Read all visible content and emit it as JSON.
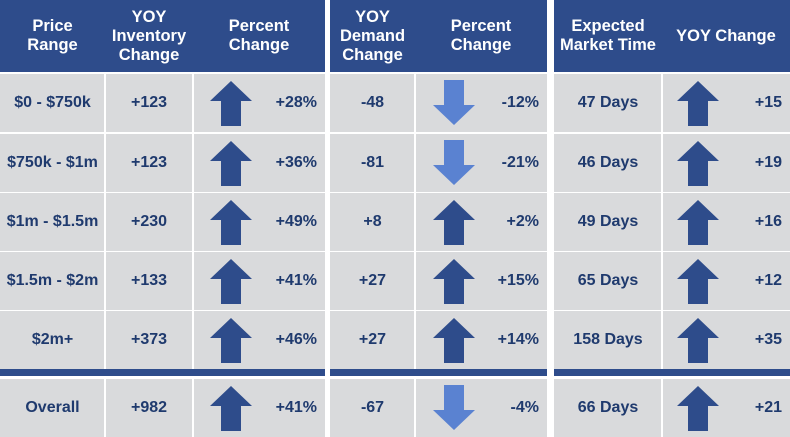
{
  "colors": {
    "header_bg": "#2e4c8b",
    "row_bg": "#d9dadc",
    "text": "#1f3a6e",
    "arrow_up": "#2e4c8b",
    "arrow_down": "#5a82d1"
  },
  "headers": {
    "price_range": "Price\nRange",
    "yoy_inventory": "YOY\nInventory\nChange",
    "inv_percent": "Percent\nChange",
    "yoy_demand": "YOY\nDemand\nChange",
    "dem_percent": "Percent\nChange",
    "market_time": "Expected\nMarket Time",
    "yoy_change": "YOY Change"
  },
  "rows": [
    {
      "range": "$0 - $750k",
      "inv": "+123",
      "inv_dir": "up-icon",
      "inv_pct": "+28%",
      "dem": "-48",
      "dem_dir": "down-icon",
      "dem_pct": "-12%",
      "time": "47 Days",
      "time_dir": "up-icon",
      "time_chg": "+15"
    },
    {
      "range": "$750k - $1m",
      "inv": "+123",
      "inv_dir": "up-icon",
      "inv_pct": "+36%",
      "dem": "-81",
      "dem_dir": "down-icon",
      "dem_pct": "-21%",
      "time": "46 Days",
      "time_dir": "up-icon",
      "time_chg": "+19"
    },
    {
      "range": "$1m - $1.5m",
      "inv": "+230",
      "inv_dir": "up-icon",
      "inv_pct": "+49%",
      "dem": "+8",
      "dem_dir": "up-icon",
      "dem_pct": "+2%",
      "time": "49 Days",
      "time_dir": "up-icon",
      "time_chg": "+16"
    },
    {
      "range": "$1.5m - $2m",
      "inv": "+133",
      "inv_dir": "up-icon",
      "inv_pct": "+41%",
      "dem": "+27",
      "dem_dir": "up-icon",
      "dem_pct": "+15%",
      "time": "65 Days",
      "time_dir": "up-icon",
      "time_chg": "+12"
    },
    {
      "range": "$2m+",
      "inv": "+373",
      "inv_dir": "up-icon",
      "inv_pct": "+46%",
      "dem": "+27",
      "dem_dir": "up-icon",
      "dem_pct": "+14%",
      "time": "158 Days",
      "time_dir": "up-icon",
      "time_chg": "+35"
    }
  ],
  "overall": {
    "range": "Overall",
    "inv": "+982",
    "inv_dir": "up-icon",
    "inv_pct": "+41%",
    "dem": "-67",
    "dem_dir": "down-icon",
    "dem_pct": "-4%",
    "time": "66 Days",
    "time_dir": "up-icon",
    "time_chg": "+21"
  }
}
